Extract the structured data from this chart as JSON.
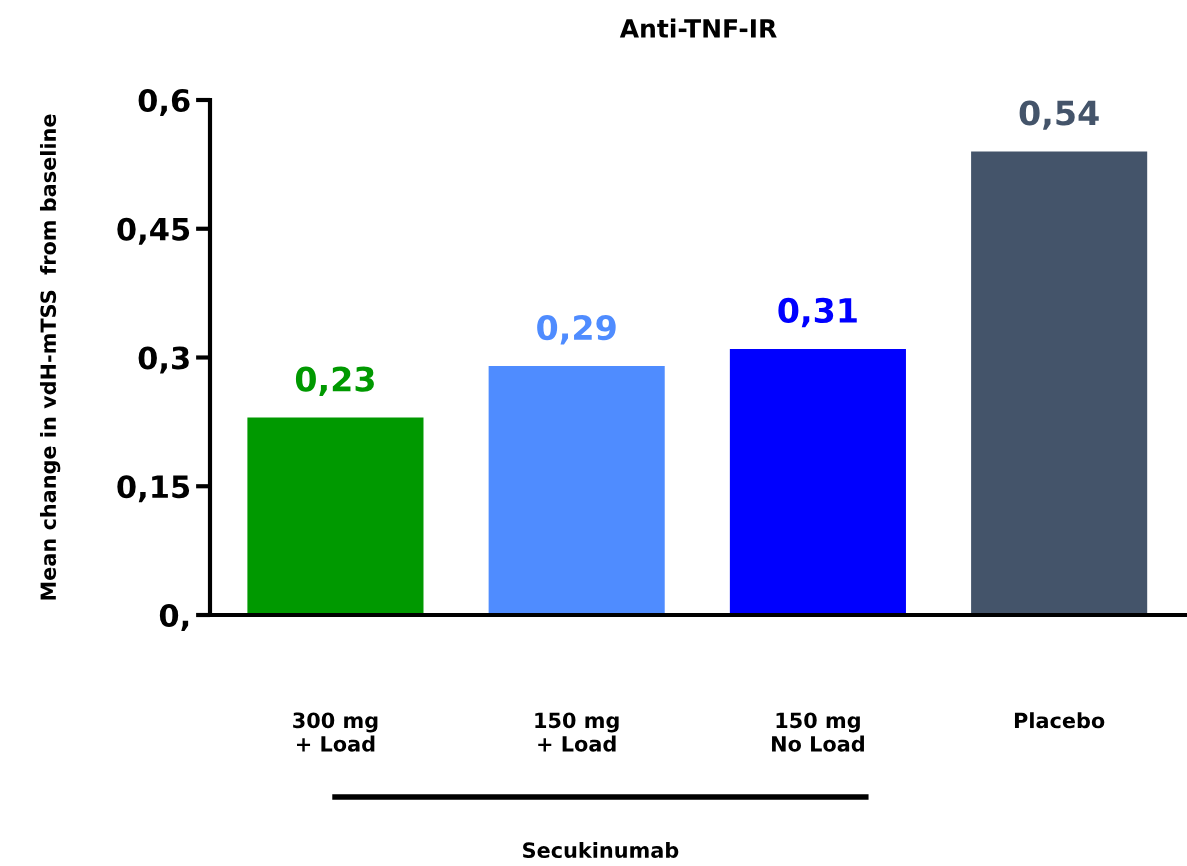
{
  "chart_data": {
    "type": "bar",
    "title": "Anti-TNF-IR",
    "ylabel": "Mean change in vdH-mTSS  from baseline",
    "categories": [
      "300 mg\n+ Load",
      "150 mg\n+ Load",
      "150 mg\nNo Load",
      "Placebo"
    ],
    "values": [
      0.23,
      0.29,
      0.31,
      0.54
    ],
    "colors": [
      "#009900",
      "#4f8cff",
      "#0000ff",
      "#44546a"
    ],
    "value_labels": [
      "0,23",
      "0,29",
      "0,31",
      "0,54"
    ],
    "ylim": [
      0,
      0.6
    ],
    "yticks": [
      {
        "value": 0,
        "label": "0,"
      },
      {
        "value": 0.15,
        "label": "0,15"
      },
      {
        "value": 0.3,
        "label": "0,3"
      },
      {
        "value": 0.45,
        "label": "0,45"
      },
      {
        "value": 0.6,
        "label": "0,6"
      }
    ],
    "annotations": [
      "Secukinumab"
    ],
    "grid": false
  }
}
